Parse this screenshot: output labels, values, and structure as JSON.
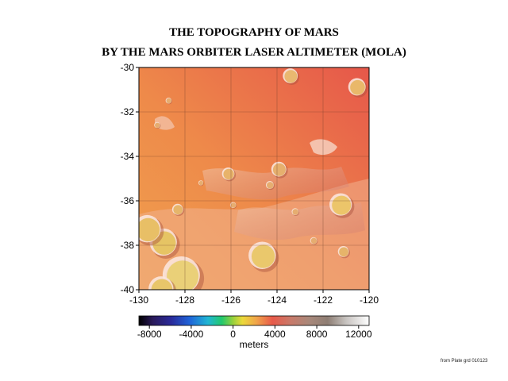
{
  "title": {
    "line1": "THE TOPOGRAPHY OF MARS",
    "line2": "BY THE MARS ORBITER LASER ALTIMETER (MOLA)"
  },
  "chart_data": {
    "type": "heatmap",
    "title": "THE TOPOGRAPHY OF MARS BY THE MARS ORBITER LASER ALTIMETER (MOLA)",
    "x_ticks": [
      "-130",
      "-128",
      "-126",
      "-124",
      "-122",
      "-120"
    ],
    "y_ticks": [
      "-30",
      "-32",
      "-34",
      "-36",
      "-38",
      "-40"
    ],
    "xlim": [
      -130,
      -120
    ],
    "ylim": [
      -40,
      -30
    ],
    "grid": true,
    "colorbar": {
      "ticks": [
        "-8000",
        "-4000",
        "0",
        "4000",
        "8000",
        "12000"
      ],
      "label": "meters",
      "range": [
        -9000,
        13000
      ]
    },
    "craters": [
      {
        "lon": -128.9,
        "lat": -37.9,
        "r_deg": 0.55,
        "floor": "#e6c464"
      },
      {
        "lon": -128.1,
        "lat": -39.4,
        "r_deg": 0.75,
        "floor": "#ead078"
      },
      {
        "lon": -129.6,
        "lat": -37.3,
        "r_deg": 0.55,
        "floor": "#e8bf66"
      },
      {
        "lon": -129.0,
        "lat": -40.0,
        "r_deg": 0.5,
        "floor": "#e8c66a"
      },
      {
        "lon": -124.6,
        "lat": -38.5,
        "r_deg": 0.55,
        "floor": "#eac86c"
      },
      {
        "lon": -121.2,
        "lat": -36.2,
        "r_deg": 0.45,
        "floor": "#ecc56a"
      },
      {
        "lon": -120.5,
        "lat": -30.9,
        "r_deg": 0.35,
        "floor": "#e9b86a"
      },
      {
        "lon": -123.4,
        "lat": -30.4,
        "r_deg": 0.3,
        "floor": "#e9b870"
      },
      {
        "lon": -123.9,
        "lat": -34.6,
        "r_deg": 0.3,
        "floor": "#e6b06e"
      },
      {
        "lon": -126.1,
        "lat": -34.8,
        "r_deg": 0.25,
        "floor": "#e8b36a"
      },
      {
        "lon": -128.3,
        "lat": -36.4,
        "r_deg": 0.22,
        "floor": "#e6b56a"
      },
      {
        "lon": -121.1,
        "lat": -38.3,
        "r_deg": 0.22,
        "floor": "#e6b46a"
      },
      {
        "lon": -124.3,
        "lat": -35.3,
        "r_deg": 0.16,
        "floor": "#e6ad70"
      },
      {
        "lon": -123.2,
        "lat": -36.5,
        "r_deg": 0.14,
        "floor": "#e6ad70"
      },
      {
        "lon": -128.7,
        "lat": -31.5,
        "r_deg": 0.12,
        "floor": "#e6ad70"
      },
      {
        "lon": -129.2,
        "lat": -32.6,
        "r_deg": 0.12,
        "floor": "#e6ad70"
      },
      {
        "lon": -125.9,
        "lat": -36.2,
        "r_deg": 0.12,
        "floor": "#e6ad70"
      },
      {
        "lon": -127.3,
        "lat": -35.2,
        "r_deg": 0.1,
        "floor": "#e6ad70"
      },
      {
        "lon": -122.4,
        "lat": -37.8,
        "r_deg": 0.14,
        "floor": "#e6ad70"
      }
    ]
  },
  "footer": {
    "source_note": "from Plate grd 010123"
  }
}
